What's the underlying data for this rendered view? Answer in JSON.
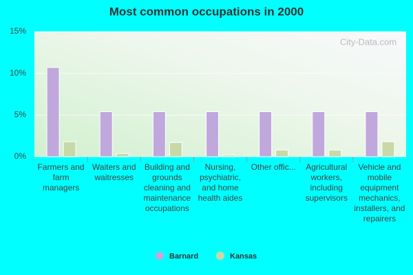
{
  "chart_data": {
    "type": "bar",
    "title": "Most common occupations in 2000",
    "watermark": "City-Data.com",
    "categories": [
      "Farmers and farm managers",
      "Waiters and waitresses",
      "Building and grounds cleaning and maintenance occupations",
      "Nursing, psychiatric, and home health aides",
      "Other offic...",
      "Agricultural workers, including supervisors",
      "Vehicle and mobile equipment mechanics, installers, and repairers"
    ],
    "series": [
      {
        "name": "Barnard",
        "color": "#c0a8dc",
        "values": [
          10.7,
          5.4,
          5.4,
          5.4,
          5.4,
          5.4,
          5.4
        ]
      },
      {
        "name": "Kansas",
        "color": "#c8d8a8",
        "values": [
          1.8,
          0.4,
          1.7,
          0.2,
          0.8,
          0.8,
          1.8
        ]
      }
    ],
    "ylim": [
      0,
      15
    ],
    "yticks": [
      {
        "value": 0,
        "label": "0%"
      },
      {
        "value": 5,
        "label": "5%"
      },
      {
        "value": 10,
        "label": "10%"
      },
      {
        "value": 15,
        "label": "15%"
      }
    ],
    "grid": true,
    "legend": "bottom"
  }
}
